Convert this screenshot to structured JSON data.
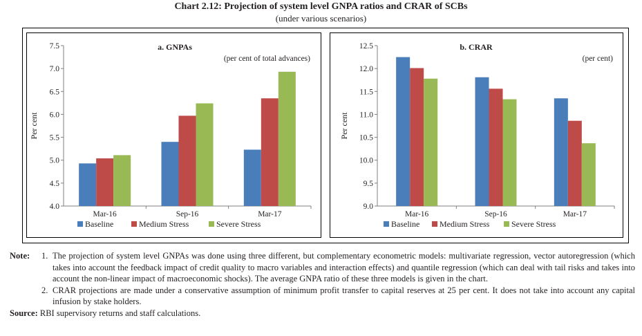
{
  "header": {
    "title": "Chart 2.12: Projection of system level GNPA ratios and CRAR of SCBs",
    "subtitle": "(under various scenarios)"
  },
  "colors": {
    "baseline": "#4a7ebb",
    "medium": "#be4b48",
    "severe": "#98b954"
  },
  "chart_data": [
    {
      "type": "bar",
      "title": "a. GNPAs",
      "unit_note": "(per cent of total advances)",
      "ylabel": "Per cent",
      "xlabel": "",
      "categories": [
        "Mar-16",
        "Sep-16",
        "Mar-17"
      ],
      "ylim": [
        4.0,
        7.5
      ],
      "yticks": [
        4.0,
        4.5,
        5.0,
        5.5,
        6.0,
        6.5,
        7.0,
        7.5
      ],
      "ytick_labels": [
        "4.0",
        "4.5",
        "5.0",
        "5.5",
        "6.0",
        "6.5",
        "7.0",
        "7.5"
      ],
      "grid": false,
      "legend_position": "bottom",
      "series": [
        {
          "name": "Baseline",
          "values": [
            4.93,
            5.4,
            5.23
          ]
        },
        {
          "name": "Medium Stress",
          "values": [
            5.04,
            5.97,
            6.35
          ]
        },
        {
          "name": "Severe Stress",
          "values": [
            5.11,
            6.24,
            6.93
          ]
        }
      ]
    },
    {
      "type": "bar",
      "title": "b. CRAR",
      "unit_note": "(per cent)",
      "ylabel": "Per cent",
      "xlabel": "",
      "categories": [
        "Mar-16",
        "Sep-16",
        "Mar-17"
      ],
      "ylim": [
        9.0,
        12.5
      ],
      "yticks": [
        9.0,
        9.5,
        10.0,
        10.5,
        11.0,
        11.5,
        12.0,
        12.5
      ],
      "ytick_labels": [
        "9.0",
        "9.5",
        "10.0",
        "10.5",
        "11.0",
        "11.5",
        "12.0",
        "12.5"
      ],
      "grid": false,
      "legend_position": "bottom",
      "series": [
        {
          "name": "Baseline",
          "values": [
            12.25,
            11.81,
            11.35
          ]
        },
        {
          "name": "Medium Stress",
          "values": [
            12.01,
            11.56,
            10.86
          ]
        },
        {
          "name": "Severe Stress",
          "values": [
            11.78,
            11.33,
            10.37
          ]
        }
      ]
    }
  ],
  "notes": {
    "label": "Note:",
    "items": [
      {
        "num": "1.",
        "text": "The projection of system level GNPAs was done using three different, but complementary econometric models: multivariate regression, vector autoregression (which takes into account the feedback impact of credit quality to macro variables and interaction effects) and quantile regression (which can deal with tail risks and takes into account the non-linear impact of macroeconomic shocks). The average GNPA ratio of these three models is given in the chart."
      },
      {
        "num": "2.",
        "text": "CRAR projections are made under a conservative assumption of minimum profit transfer to capital reserves at 25 per cent. It does not take into account any capital infusion by stake holders."
      }
    ]
  },
  "source": {
    "label": "Source:",
    "text": "RBI supervisory returns and staff calculations."
  }
}
